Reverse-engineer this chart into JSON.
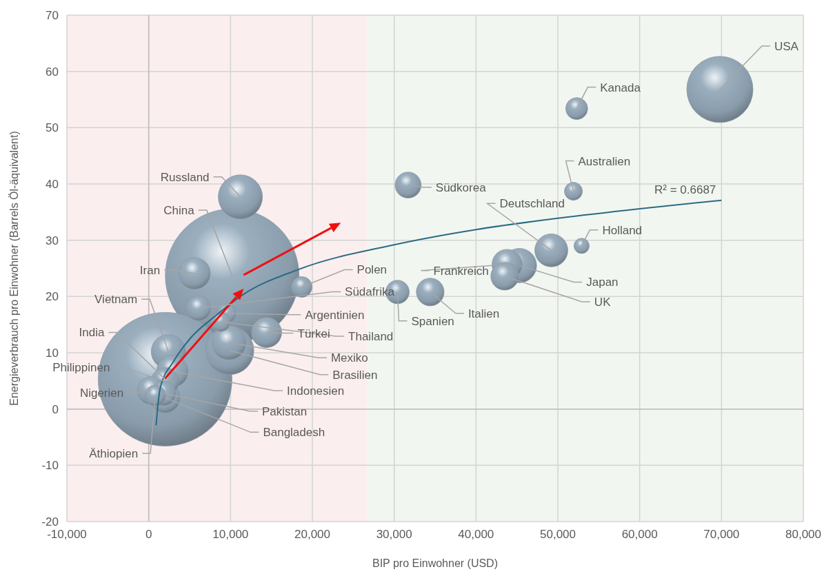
{
  "chart_data": {
    "type": "bubble",
    "xlabel": "BIP pro Einwohner (USD)",
    "ylabel": "Energieverbrauch pro Einwohner (Barrels Öl-äquivalent)",
    "xlim": [
      -10000,
      80000
    ],
    "ylim": [
      -20,
      70
    ],
    "xticks": [
      {
        "value": -10000,
        "label": "-10,000"
      },
      {
        "value": 0,
        "label": "0"
      },
      {
        "value": 10000,
        "label": "10,000"
      },
      {
        "value": 20000,
        "label": "20,000"
      },
      {
        "value": 30000,
        "label": "30,000"
      },
      {
        "value": 40000,
        "label": "40,000"
      },
      {
        "value": 50000,
        "label": "50,000"
      },
      {
        "value": 60000,
        "label": "60,000"
      },
      {
        "value": 70000,
        "label": "70,000"
      },
      {
        "value": 80000,
        "label": "80,000"
      }
    ],
    "yticks": [
      -20,
      -10,
      0,
      10,
      20,
      30,
      40,
      50,
      60,
      70
    ],
    "grid": true,
    "bands": [
      {
        "axis": "x",
        "from": -10000,
        "to": 26700,
        "color": "#fbeeee"
      },
      {
        "axis": "x",
        "from": 26700,
        "to": 80000,
        "color": "#f2f6f0"
      }
    ],
    "series": [
      {
        "color": "#8a9cab",
        "x": [
          10200,
          2000,
          11200,
          5600,
          18700,
          6100,
          9500,
          8800,
          14400,
          9800,
          9900,
          2400,
          2900,
          2000,
          300,
          1800,
          2000,
          800,
          31700,
          51900,
          49200,
          52900,
          45300,
          43800,
          43500,
          30400,
          34400,
          52300,
          69800
        ],
        "values": [
          23.7,
          5.3,
          37.7,
          24.1,
          21.7,
          17.9,
          17.0,
          15.5,
          13.6,
          11.8,
          10.4,
          10.2,
          6.7,
          4.9,
          3.3,
          2.8,
          2.0,
          2.4,
          39.8,
          38.7,
          28.2,
          29.0,
          25.5,
          25.7,
          23.6,
          20.8,
          20.8,
          53.4,
          56.8
        ],
        "sizes": [
          1,
          1,
          0.109,
          0.056,
          0.024,
          0.034,
          0.021,
          0.021,
          0.051,
          0.066,
          0.13,
          0.066,
          0.056,
          0.043,
          0.043,
          0.034,
          0.051,
          0.024,
          0.038,
          0.018,
          0.061,
          0.013,
          0.066,
          0.051,
          0.043,
          0.031,
          0.043,
          0.027,
          0.245
        ]
      },
      {
        "type": "line",
        "color": "#2a6a84",
        "x": [
          900,
          1400,
          3100,
          5100,
          8200,
          11500,
          18300,
          30000,
          40000,
          50000,
          60000,
          70000
        ],
        "values": [
          -2.9,
          3.7,
          8.6,
          12.6,
          16.6,
          20.3,
          24.8,
          29.2,
          31.9,
          33.9,
          35.6,
          37.1
        ]
      }
    ],
    "annotations": [
      {
        "text": "China",
        "x": 10200,
        "y": 23.7
      },
      {
        "text": "India",
        "x": 2000,
        "y": 5.3
      },
      {
        "text": "Russland",
        "x": 11200,
        "y": 37.7
      },
      {
        "text": "Iran",
        "x": 5600,
        "y": 24.1
      },
      {
        "text": "Polen",
        "x": 18700,
        "y": 21.7
      },
      {
        "text": "Südafrika",
        "x": 6100,
        "y": 17.9
      },
      {
        "text": "Argentinien",
        "x": 9500,
        "y": 17.0
      },
      {
        "text": "Thailand",
        "x": 8800,
        "y": 15.5
      },
      {
        "text": "Türkei",
        "x": 14400,
        "y": 13.6
      },
      {
        "text": "Mexiko",
        "x": 9800,
        "y": 11.8
      },
      {
        "text": "Brasilien",
        "x": 9900,
        "y": 10.4
      },
      {
        "text": "Vietnam",
        "x": 2400,
        "y": 10.2
      },
      {
        "text": "Indonesien",
        "x": 2900,
        "y": 6.7
      },
      {
        "text": "Philippinen",
        "x": 2000,
        "y": 4.9
      },
      {
        "text": "Nigerien",
        "x": 300,
        "y": 3.3
      },
      {
        "text": "Pakistan",
        "x": 1800,
        "y": 2.8
      },
      {
        "text": "Bangladesh",
        "x": 2000,
        "y": 2.0
      },
      {
        "text": "Äthiopien",
        "x": 800,
        "y": 2.4
      },
      {
        "text": "Südkorea",
        "x": 31700,
        "y": 39.8
      },
      {
        "text": "Australien",
        "x": 51900,
        "y": 38.7
      },
      {
        "text": "Deutschland",
        "x": 49200,
        "y": 28.2
      },
      {
        "text": "Holland",
        "x": 52900,
        "y": 29.0
      },
      {
        "text": "Japan",
        "x": 45300,
        "y": 25.5
      },
      {
        "text": "Frankreich",
        "x": 43800,
        "y": 25.7
      },
      {
        "text": "UK",
        "x": 43500,
        "y": 23.6
      },
      {
        "text": "Spanien",
        "x": 30400,
        "y": 20.8
      },
      {
        "text": "Italien",
        "x": 34400,
        "y": 20.8
      },
      {
        "text": "Kanada",
        "x": 52300,
        "y": 53.4
      },
      {
        "text": "USA",
        "x": 69800,
        "y": 56.8
      },
      "R² = 0.6687"
    ]
  }
}
